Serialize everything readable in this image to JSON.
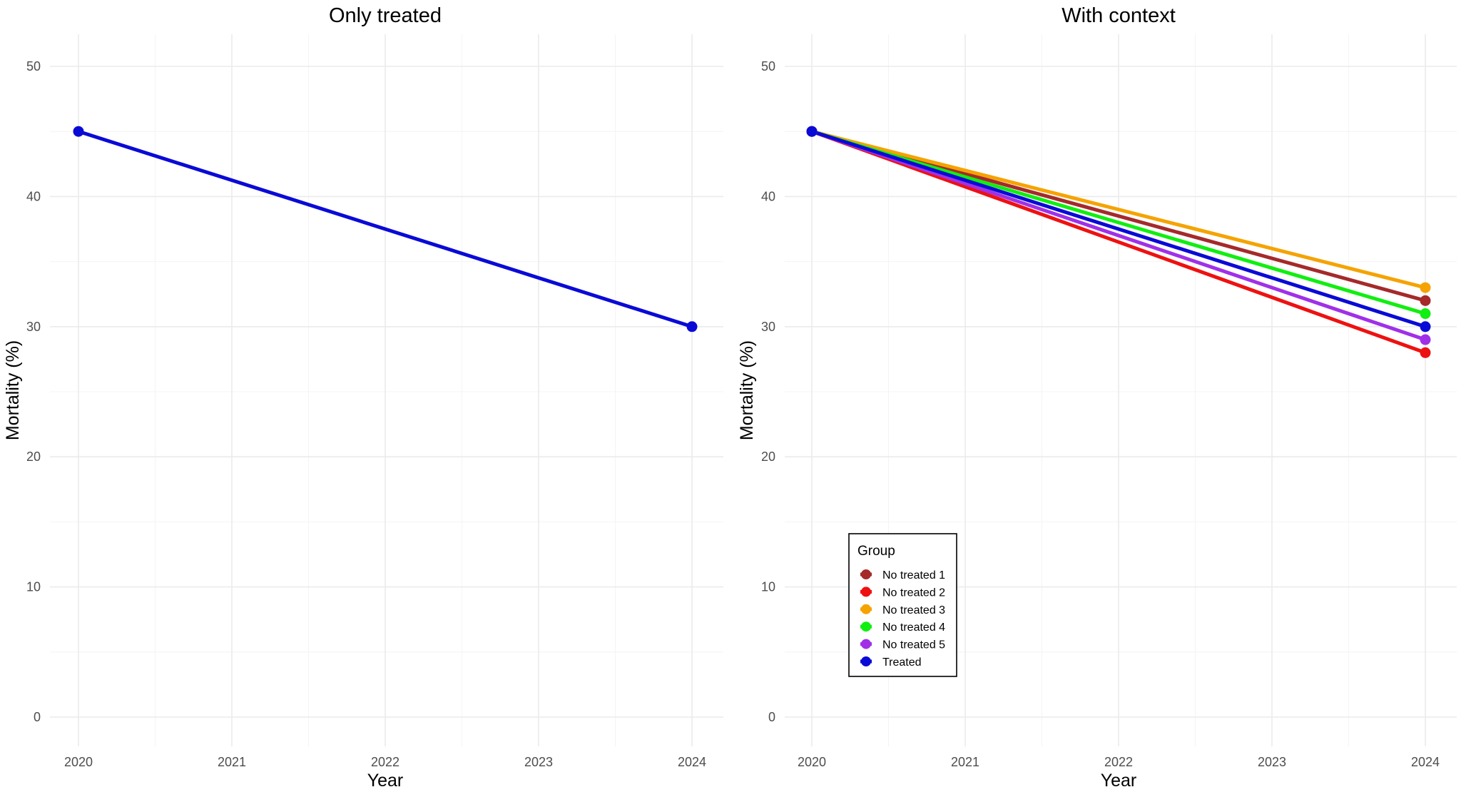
{
  "chart_data": [
    {
      "type": "line",
      "title": "Only treated",
      "xlabel": "Year",
      "ylabel": "Mortality (%)",
      "x": [
        2020,
        2024
      ],
      "xlim": [
        2020,
        2024
      ],
      "ylim": [
        0,
        50
      ],
      "xticks": [
        2020,
        2021,
        2022,
        2023,
        2024
      ],
      "yticks": [
        0,
        10,
        20,
        30,
        40,
        50
      ],
      "grid": true,
      "series": [
        {
          "name": "Treated",
          "color": "#0a0ad6",
          "values": [
            45,
            30
          ]
        }
      ]
    },
    {
      "type": "line",
      "title": "With context",
      "xlabel": "Year",
      "ylabel": "Mortality (%)",
      "x": [
        2020,
        2024
      ],
      "xlim": [
        2020,
        2024
      ],
      "ylim": [
        0,
        50
      ],
      "xticks": [
        2020,
        2021,
        2022,
        2023,
        2024
      ],
      "yticks": [
        0,
        10,
        20,
        30,
        40,
        50
      ],
      "grid": true,
      "legend": {
        "title": "Group",
        "placement": "bottom-left",
        "entries": [
          "No treated 1",
          "No treated 2",
          "No treated 3",
          "No treated 4",
          "No treated 5",
          "Treated"
        ]
      },
      "series": [
        {
          "name": "No treated 1",
          "color": "#a52a2a",
          "values": [
            45,
            32
          ]
        },
        {
          "name": "No treated 2",
          "color": "#ee1111",
          "values": [
            45,
            28
          ]
        },
        {
          "name": "No treated 3",
          "color": "#f5a300",
          "values": [
            45,
            33
          ]
        },
        {
          "name": "No treated 4",
          "color": "#11ee11",
          "values": [
            45,
            31
          ]
        },
        {
          "name": "No treated 5",
          "color": "#a030e8",
          "values": [
            45,
            29
          ]
        },
        {
          "name": "Treated",
          "color": "#0a0ad6",
          "values": [
            45,
            30
          ]
        }
      ]
    }
  ]
}
